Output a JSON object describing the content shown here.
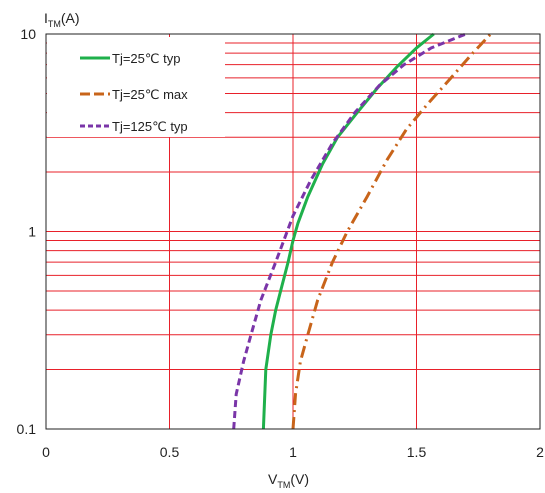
{
  "chart_data": {
    "type": "line",
    "x_axis": {
      "label_main": "V",
      "label_sub": "TM",
      "label_unit": "(V)",
      "min": 0,
      "max": 2,
      "ticks": [
        0,
        0.5,
        1,
        1.5,
        2
      ],
      "tick_labels": [
        "0",
        "0.5",
        "1",
        "1.5",
        "2"
      ]
    },
    "y_axis": {
      "label_main": "I",
      "label_sub": "TM",
      "label_unit": "(A)",
      "scale": "log",
      "min": 0.1,
      "max": 10,
      "ticks": [
        0.1,
        1,
        10
      ],
      "tick_labels": [
        "0.1",
        "1",
        "10"
      ]
    },
    "grid": true,
    "grid_color": "#e8202a",
    "legend_position": "top-left",
    "series": [
      {
        "name": "Tj=25℃ typ",
        "color": "#1fb04b",
        "dash": "solid",
        "points": [
          [
            0.88,
            0.1
          ],
          [
            0.89,
            0.2
          ],
          [
            0.91,
            0.3
          ],
          [
            0.93,
            0.4
          ],
          [
            0.95,
            0.5
          ],
          [
            0.98,
            0.7
          ],
          [
            1.0,
            0.9
          ],
          [
            1.02,
            1.1
          ],
          [
            1.06,
            1.5
          ],
          [
            1.12,
            2.2
          ],
          [
            1.18,
            3.0
          ],
          [
            1.26,
            4.0
          ],
          [
            1.34,
            5.3
          ],
          [
            1.42,
            6.8
          ],
          [
            1.5,
            8.5
          ],
          [
            1.57,
            10
          ]
        ]
      },
      {
        "name": "Tj=25℃ max",
        "color": "#c8641a",
        "dash": "dash-dot",
        "points": [
          [
            1.0,
            0.1
          ],
          [
            1.01,
            0.15
          ],
          [
            1.03,
            0.22
          ],
          [
            1.06,
            0.3
          ],
          [
            1.1,
            0.45
          ],
          [
            1.16,
            0.7
          ],
          [
            1.22,
            1.0
          ],
          [
            1.3,
            1.5
          ],
          [
            1.38,
            2.3
          ],
          [
            1.46,
            3.3
          ],
          [
            1.55,
            4.5
          ],
          [
            1.64,
            6.0
          ],
          [
            1.72,
            7.8
          ],
          [
            1.8,
            10
          ]
        ]
      },
      {
        "name": "Tj=125℃ typ",
        "color": "#7a35a8",
        "dash": "dash",
        "points": [
          [
            0.76,
            0.1
          ],
          [
            0.77,
            0.15
          ],
          [
            0.8,
            0.22
          ],
          [
            0.83,
            0.3
          ],
          [
            0.87,
            0.45
          ],
          [
            0.93,
            0.7
          ],
          [
            1.0,
            1.2
          ],
          [
            1.07,
            1.8
          ],
          [
            1.16,
            2.8
          ],
          [
            1.25,
            4.0
          ],
          [
            1.35,
            5.5
          ],
          [
            1.45,
            7.0
          ],
          [
            1.56,
            8.5
          ],
          [
            1.7,
            10
          ]
        ]
      }
    ]
  }
}
